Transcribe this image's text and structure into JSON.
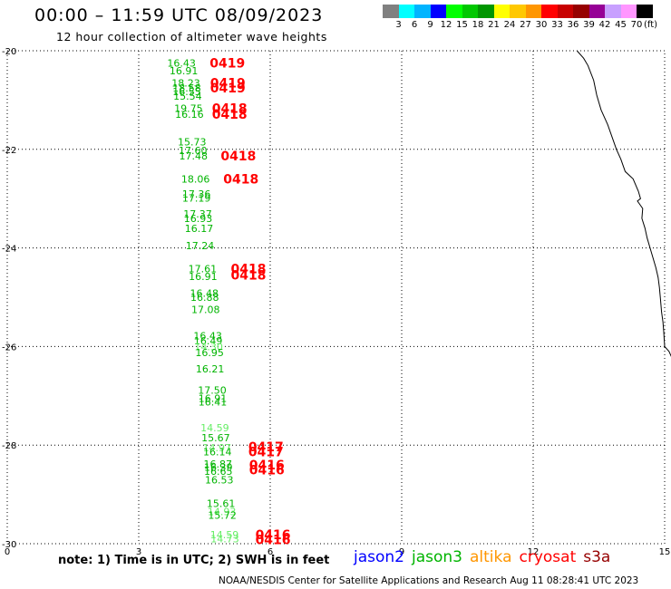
{
  "header": {
    "title": "00:00 – 11:59 UTC 08/09/2023",
    "subtitle": "12 hour collection of altimeter wave heights"
  },
  "legend": {
    "colors": [
      "#808080",
      "#00ffff",
      "#00b4ff",
      "#0000ff",
      "#00ff00",
      "#00c800",
      "#009600",
      "#ffff00",
      "#ffc800",
      "#ff9600",
      "#ff0000",
      "#c80000",
      "#960000",
      "#960096",
      "#c8a0ff",
      "#ff96ff",
      "#000000"
    ],
    "labels": [
      "3",
      "6",
      "9",
      "12",
      "15",
      "18",
      "21",
      "24",
      "27",
      "30",
      "33",
      "36",
      "39",
      "42",
      "45",
      "70"
    ],
    "unit": "(ft)"
  },
  "axes": {
    "x_ticks": [
      "0",
      "3",
      "6",
      "9",
      "12",
      "15"
    ],
    "y_ticks": [
      "-20",
      "-22",
      "-24",
      "-26",
      "-28",
      "-30"
    ],
    "x_values": [
      0,
      3,
      6,
      9,
      12,
      15
    ],
    "y_values": [
      -20,
      -22,
      -24,
      -26,
      -28,
      -30
    ],
    "xlim": [
      0,
      15
    ],
    "ylim": [
      -30,
      -20
    ],
    "grid": true
  },
  "colors": {
    "jason3": "#00b400",
    "jason3_light": "#66ee66",
    "cycle": "#ff0000",
    "coastline": "#000000"
  },
  "observations": [
    {
      "lon": 3.65,
      "lat": -20.25,
      "v": "16.43"
    },
    {
      "lon": 3.7,
      "lat": -20.4,
      "v": "16.91"
    },
    {
      "lon": 3.75,
      "lat": -20.65,
      "v": "18.23"
    },
    {
      "lon": 3.77,
      "lat": -20.75,
      "v": "18.58"
    },
    {
      "lon": 3.77,
      "lat": -20.83,
      "v": "16.55"
    },
    {
      "lon": 3.79,
      "lat": -20.92,
      "v": "15.54"
    },
    {
      "lon": 3.81,
      "lat": -21.17,
      "v": "19.75"
    },
    {
      "lon": 3.83,
      "lat": -21.29,
      "v": "16.16"
    },
    {
      "lon": 3.89,
      "lat": -21.85,
      "v": "15.73"
    },
    {
      "lon": 3.91,
      "lat": -22.02,
      "v": "17.60"
    },
    {
      "lon": 3.92,
      "lat": -22.13,
      "v": "17.48"
    },
    {
      "lon": 3.97,
      "lat": -22.6,
      "v": "18.06"
    },
    {
      "lon": 3.99,
      "lat": -22.9,
      "v": "17.36"
    },
    {
      "lon": 3.99,
      "lat": -22.99,
      "v": "17.19"
    },
    {
      "lon": 4.02,
      "lat": -23.31,
      "v": "17.37"
    },
    {
      "lon": 4.03,
      "lat": -23.4,
      "v": "16.93"
    },
    {
      "lon": 4.05,
      "lat": -23.6,
      "v": "16.17"
    },
    {
      "lon": 4.07,
      "lat": -23.95,
      "v": "17.24"
    },
    {
      "lon": 4.13,
      "lat": -24.42,
      "v": "17.61"
    },
    {
      "lon": 4.14,
      "lat": -24.58,
      "v": "16.91"
    },
    {
      "lon": 4.17,
      "lat": -24.92,
      "v": "16.48"
    },
    {
      "lon": 4.18,
      "lat": -25.0,
      "v": "16.88"
    },
    {
      "lon": 4.2,
      "lat": -25.25,
      "v": "17.08"
    },
    {
      "lon": 4.25,
      "lat": -25.78,
      "v": "16.43"
    },
    {
      "lon": 4.26,
      "lat": -25.88,
      "v": "16.49"
    },
    {
      "lon": 4.27,
      "lat": -26.0,
      "v": "14.30",
      "light": true
    },
    {
      "lon": 4.29,
      "lat": -26.12,
      "v": "16.95"
    },
    {
      "lon": 4.3,
      "lat": -26.45,
      "v": "16.21"
    },
    {
      "lon": 4.35,
      "lat": -26.88,
      "v": "17.50"
    },
    {
      "lon": 4.36,
      "lat": -27.05,
      "v": "16.91"
    },
    {
      "lon": 4.36,
      "lat": -27.12,
      "v": "16.41"
    },
    {
      "lon": 4.41,
      "lat": -27.65,
      "v": "14.59",
      "light": true
    },
    {
      "lon": 4.43,
      "lat": -27.85,
      "v": "15.67"
    },
    {
      "lon": 4.46,
      "lat": -28.05,
      "v": "14.97",
      "light": true
    },
    {
      "lon": 4.47,
      "lat": -28.13,
      "v": "16.14"
    },
    {
      "lon": 4.48,
      "lat": -28.38,
      "v": "16.87"
    },
    {
      "lon": 4.49,
      "lat": -28.45,
      "v": "16.39"
    },
    {
      "lon": 4.49,
      "lat": -28.53,
      "v": "16.65"
    },
    {
      "lon": 4.51,
      "lat": -28.7,
      "v": "16.53"
    },
    {
      "lon": 4.55,
      "lat": -29.18,
      "v": "15.61"
    },
    {
      "lon": 4.57,
      "lat": -29.35,
      "v": "14.93",
      "light": true
    },
    {
      "lon": 4.58,
      "lat": -29.42,
      "v": "15.72"
    },
    {
      "lon": 4.63,
      "lat": -29.82,
      "v": "14.59",
      "light": true
    },
    {
      "lon": 4.64,
      "lat": -29.9,
      "v": "14.73",
      "light": true
    }
  ],
  "cycles": [
    {
      "lon": 4.62,
      "lat": -20.25,
      "v": "0419"
    },
    {
      "lon": 4.63,
      "lat": -20.65,
      "v": "0419"
    },
    {
      "lon": 4.63,
      "lat": -20.75,
      "v": "0419"
    },
    {
      "lon": 4.67,
      "lat": -21.17,
      "v": "0418"
    },
    {
      "lon": 4.67,
      "lat": -21.29,
      "v": "0418"
    },
    {
      "lon": 4.87,
      "lat": -22.13,
      "v": "0418"
    },
    {
      "lon": 4.93,
      "lat": -22.6,
      "v": "0418"
    },
    {
      "lon": 5.1,
      "lat": -24.42,
      "v": "0418"
    },
    {
      "lon": 5.1,
      "lat": -24.55,
      "v": "0418"
    },
    {
      "lon": 5.5,
      "lat": -28.03,
      "v": "0417"
    },
    {
      "lon": 5.5,
      "lat": -28.13,
      "v": "0417"
    },
    {
      "lon": 5.52,
      "lat": -28.4,
      "v": "0416"
    },
    {
      "lon": 5.52,
      "lat": -28.5,
      "v": "0416"
    },
    {
      "lon": 5.66,
      "lat": -29.82,
      "v": "0416"
    },
    {
      "lon": 5.66,
      "lat": -29.92,
      "v": "0416"
    }
  ],
  "coastline": [
    [
      13.0,
      -20.0
    ],
    [
      13.15,
      -20.15
    ],
    [
      13.25,
      -20.3
    ],
    [
      13.38,
      -20.6
    ],
    [
      13.45,
      -20.9
    ],
    [
      13.55,
      -21.2
    ],
    [
      13.7,
      -21.5
    ],
    [
      13.8,
      -21.75
    ],
    [
      13.9,
      -22.0
    ],
    [
      14.0,
      -22.2
    ],
    [
      14.1,
      -22.45
    ],
    [
      14.28,
      -22.6
    ],
    [
      14.4,
      -22.85
    ],
    [
      14.45,
      -23.0
    ],
    [
      14.38,
      -23.05
    ],
    [
      14.5,
      -23.2
    ],
    [
      14.48,
      -23.4
    ],
    [
      14.55,
      -23.6
    ],
    [
      14.6,
      -23.8
    ],
    [
      14.7,
      -24.1
    ],
    [
      14.8,
      -24.4
    ],
    [
      14.85,
      -24.6
    ],
    [
      14.88,
      -24.8
    ],
    [
      14.9,
      -25.0
    ],
    [
      14.93,
      -25.3
    ],
    [
      14.96,
      -25.5
    ],
    [
      14.98,
      -25.7
    ],
    [
      15.0,
      -26.0
    ],
    [
      15.1,
      -26.1
    ],
    [
      15.2,
      -26.3
    ]
  ],
  "note": "note: 1) Time is in UTC; 2) SWH is in feet",
  "missions": [
    {
      "name": "jason2",
      "color": "#0000ff"
    },
    {
      "name": "jason3",
      "color": "#00b400"
    },
    {
      "name": "altika",
      "color": "#ff9600"
    },
    {
      "name": "cryosat",
      "color": "#ff0000"
    },
    {
      "name": "s3a",
      "color": "#960000"
    }
  ],
  "footer": "NOAA/NESDIS Center for Satellite Applications and Research     Aug 11 08:28:41 UTC 2023"
}
